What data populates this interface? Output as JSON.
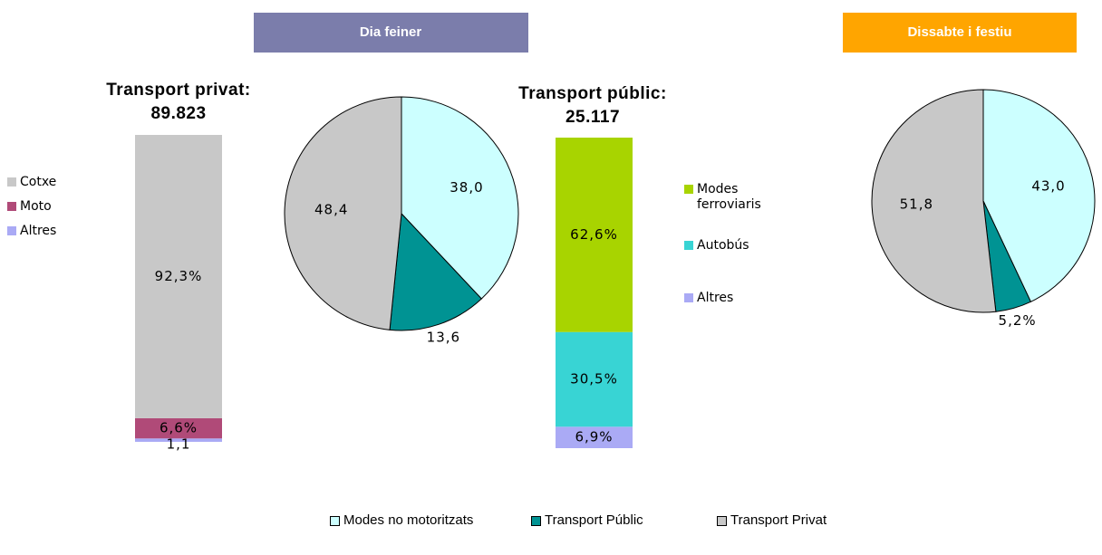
{
  "headers": [
    "Dia feiner",
    "Dissabte i festiu"
  ],
  "chart_data": [
    {
      "type": "stacked-bar",
      "title": "Transport privat:",
      "subtitle": "89.823",
      "ylim": [
        0,
        100
      ],
      "series": [
        {
          "name": "Cotxe",
          "color": "#c8c8c8",
          "values": [
            92.3
          ],
          "value_labels": [
            "92,3%"
          ]
        },
        {
          "name": "Moto",
          "color": "#b04a78",
          "values": [
            6.6
          ],
          "value_labels": [
            "6,6%"
          ]
        },
        {
          "name": "Altres",
          "color": "#aaaaf5",
          "values": [
            1.1
          ],
          "value_labels": [
            "1,1"
          ]
        }
      ]
    },
    {
      "type": "pie",
      "categories": [
        "Modes no motoritzats",
        "Transport Públic",
        "Transport Privat"
      ],
      "colors": [
        "#ccffff",
        "#009393",
        "#c8c8c8"
      ],
      "values": [
        38.0,
        13.6,
        48.4
      ],
      "value_labels": [
        "38,0",
        "13,6",
        "48,4"
      ]
    },
    {
      "type": "stacked-bar",
      "title": "Transport públic:",
      "subtitle": "25.117",
      "ylim": [
        0,
        100
      ],
      "series": [
        {
          "name": "Modes ferroviaris",
          "color": "#a8d400",
          "values": [
            62.6
          ],
          "value_labels": [
            "62,6%"
          ]
        },
        {
          "name": "Autobús",
          "color": "#38d4d4",
          "values": [
            30.5
          ],
          "value_labels": [
            "30,5%"
          ]
        },
        {
          "name": "Altres",
          "color": "#aaaaf5",
          "values": [
            6.9
          ],
          "value_labels": [
            "6,9%"
          ]
        }
      ]
    },
    {
      "type": "pie",
      "categories": [
        "Modes no motoritzats",
        "Transport Públic",
        "Transport Privat"
      ],
      "colors": [
        "#ccffff",
        "#009393",
        "#c8c8c8"
      ],
      "values": [
        43.0,
        5.2,
        51.8
      ],
      "value_labels": [
        "43,0",
        "5,2%",
        "51,8"
      ]
    }
  ]
}
